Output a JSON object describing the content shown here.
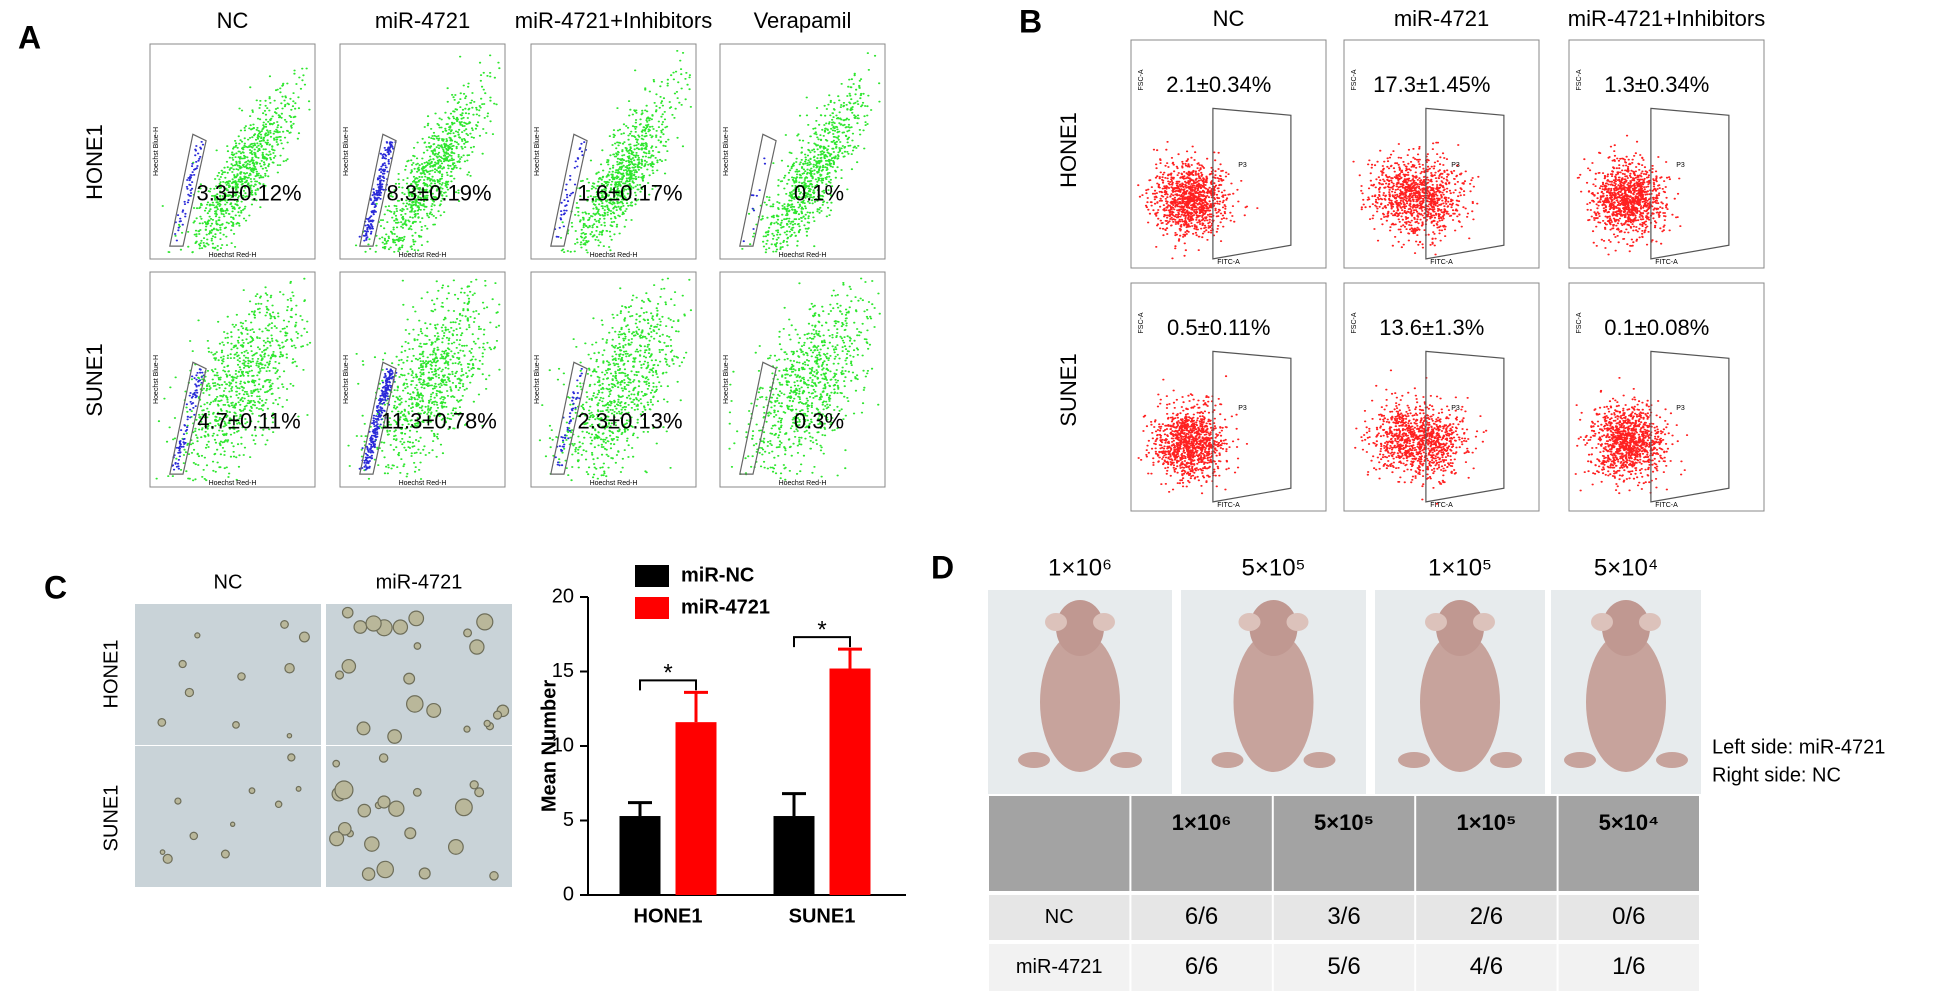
{
  "panel_labels": [
    "A",
    "B",
    "C",
    "D"
  ],
  "panel_a": {
    "columns": [
      "NC",
      "miR-4721",
      "miR-4721+Inhibitors",
      "Verapamil"
    ],
    "rows": [
      "HONE1",
      "SUNE1"
    ],
    "percentages": [
      [
        "3.3±0.12%",
        "8.3±0.19%",
        "1.6±0.17%",
        "0.1%"
      ],
      [
        "4.7±0.11%",
        "11.3±0.78%",
        "2.3±0.13%",
        "0.3%"
      ]
    ],
    "x_axis_label": "Hoechst Red-H",
    "y_axis_label": "Hoechst Blue-H"
  },
  "panel_b": {
    "columns": [
      "NC",
      "miR-4721",
      "miR-4721+Inhibitors"
    ],
    "rows": [
      "HONE1",
      "SUNE1"
    ],
    "percentages": [
      [
        "2.1±0.34%",
        "17.3±1.45%",
        "1.3±0.34%"
      ],
      [
        "0.5±0.11%",
        "13.6±1.3%",
        "0.1±0.08%"
      ]
    ],
    "gate_label": "P3",
    "x_axis_label": "FITC-A",
    "y_axis_label": "FSC-A"
  },
  "panel_c": {
    "columns": [
      "NC",
      "miR-4721"
    ],
    "rows": [
      "HONE1",
      "SUNE1"
    ]
  },
  "chart_data": {
    "type": "bar",
    "categories": [
      "HONE1",
      "SUNE1"
    ],
    "series": [
      {
        "name": "miR-NC",
        "color": "#000000",
        "values": [
          5.3,
          5.3
        ],
        "errors": [
          0.9,
          1.5
        ]
      },
      {
        "name": "miR-4721",
        "color": "#ff0000",
        "values": [
          11.6,
          15.2
        ],
        "errors": [
          2.0,
          1.3
        ]
      }
    ],
    "y_label": "Mean Number",
    "ylim": [
      0,
      20
    ],
    "yticks": [
      0,
      5,
      10,
      15,
      20
    ],
    "significance": [
      "*",
      "*"
    ]
  },
  "panel_d": {
    "doses": [
      "1×10⁶",
      "5×10⁵",
      "1×10⁵",
      "5×10⁴"
    ],
    "side_labels": [
      "Left side: miR-4721",
      "Right side: NC"
    ],
    "table": {
      "header": [
        "1×10⁶",
        "5×10⁵",
        "1×10⁵",
        "5×10⁴"
      ],
      "rows": [
        [
          "NC",
          "6/6",
          "3/6",
          "2/6",
          "0/6"
        ],
        [
          "miR-4721",
          "6/6",
          "5/6",
          "4/6",
          "1/6"
        ]
      ]
    }
  }
}
